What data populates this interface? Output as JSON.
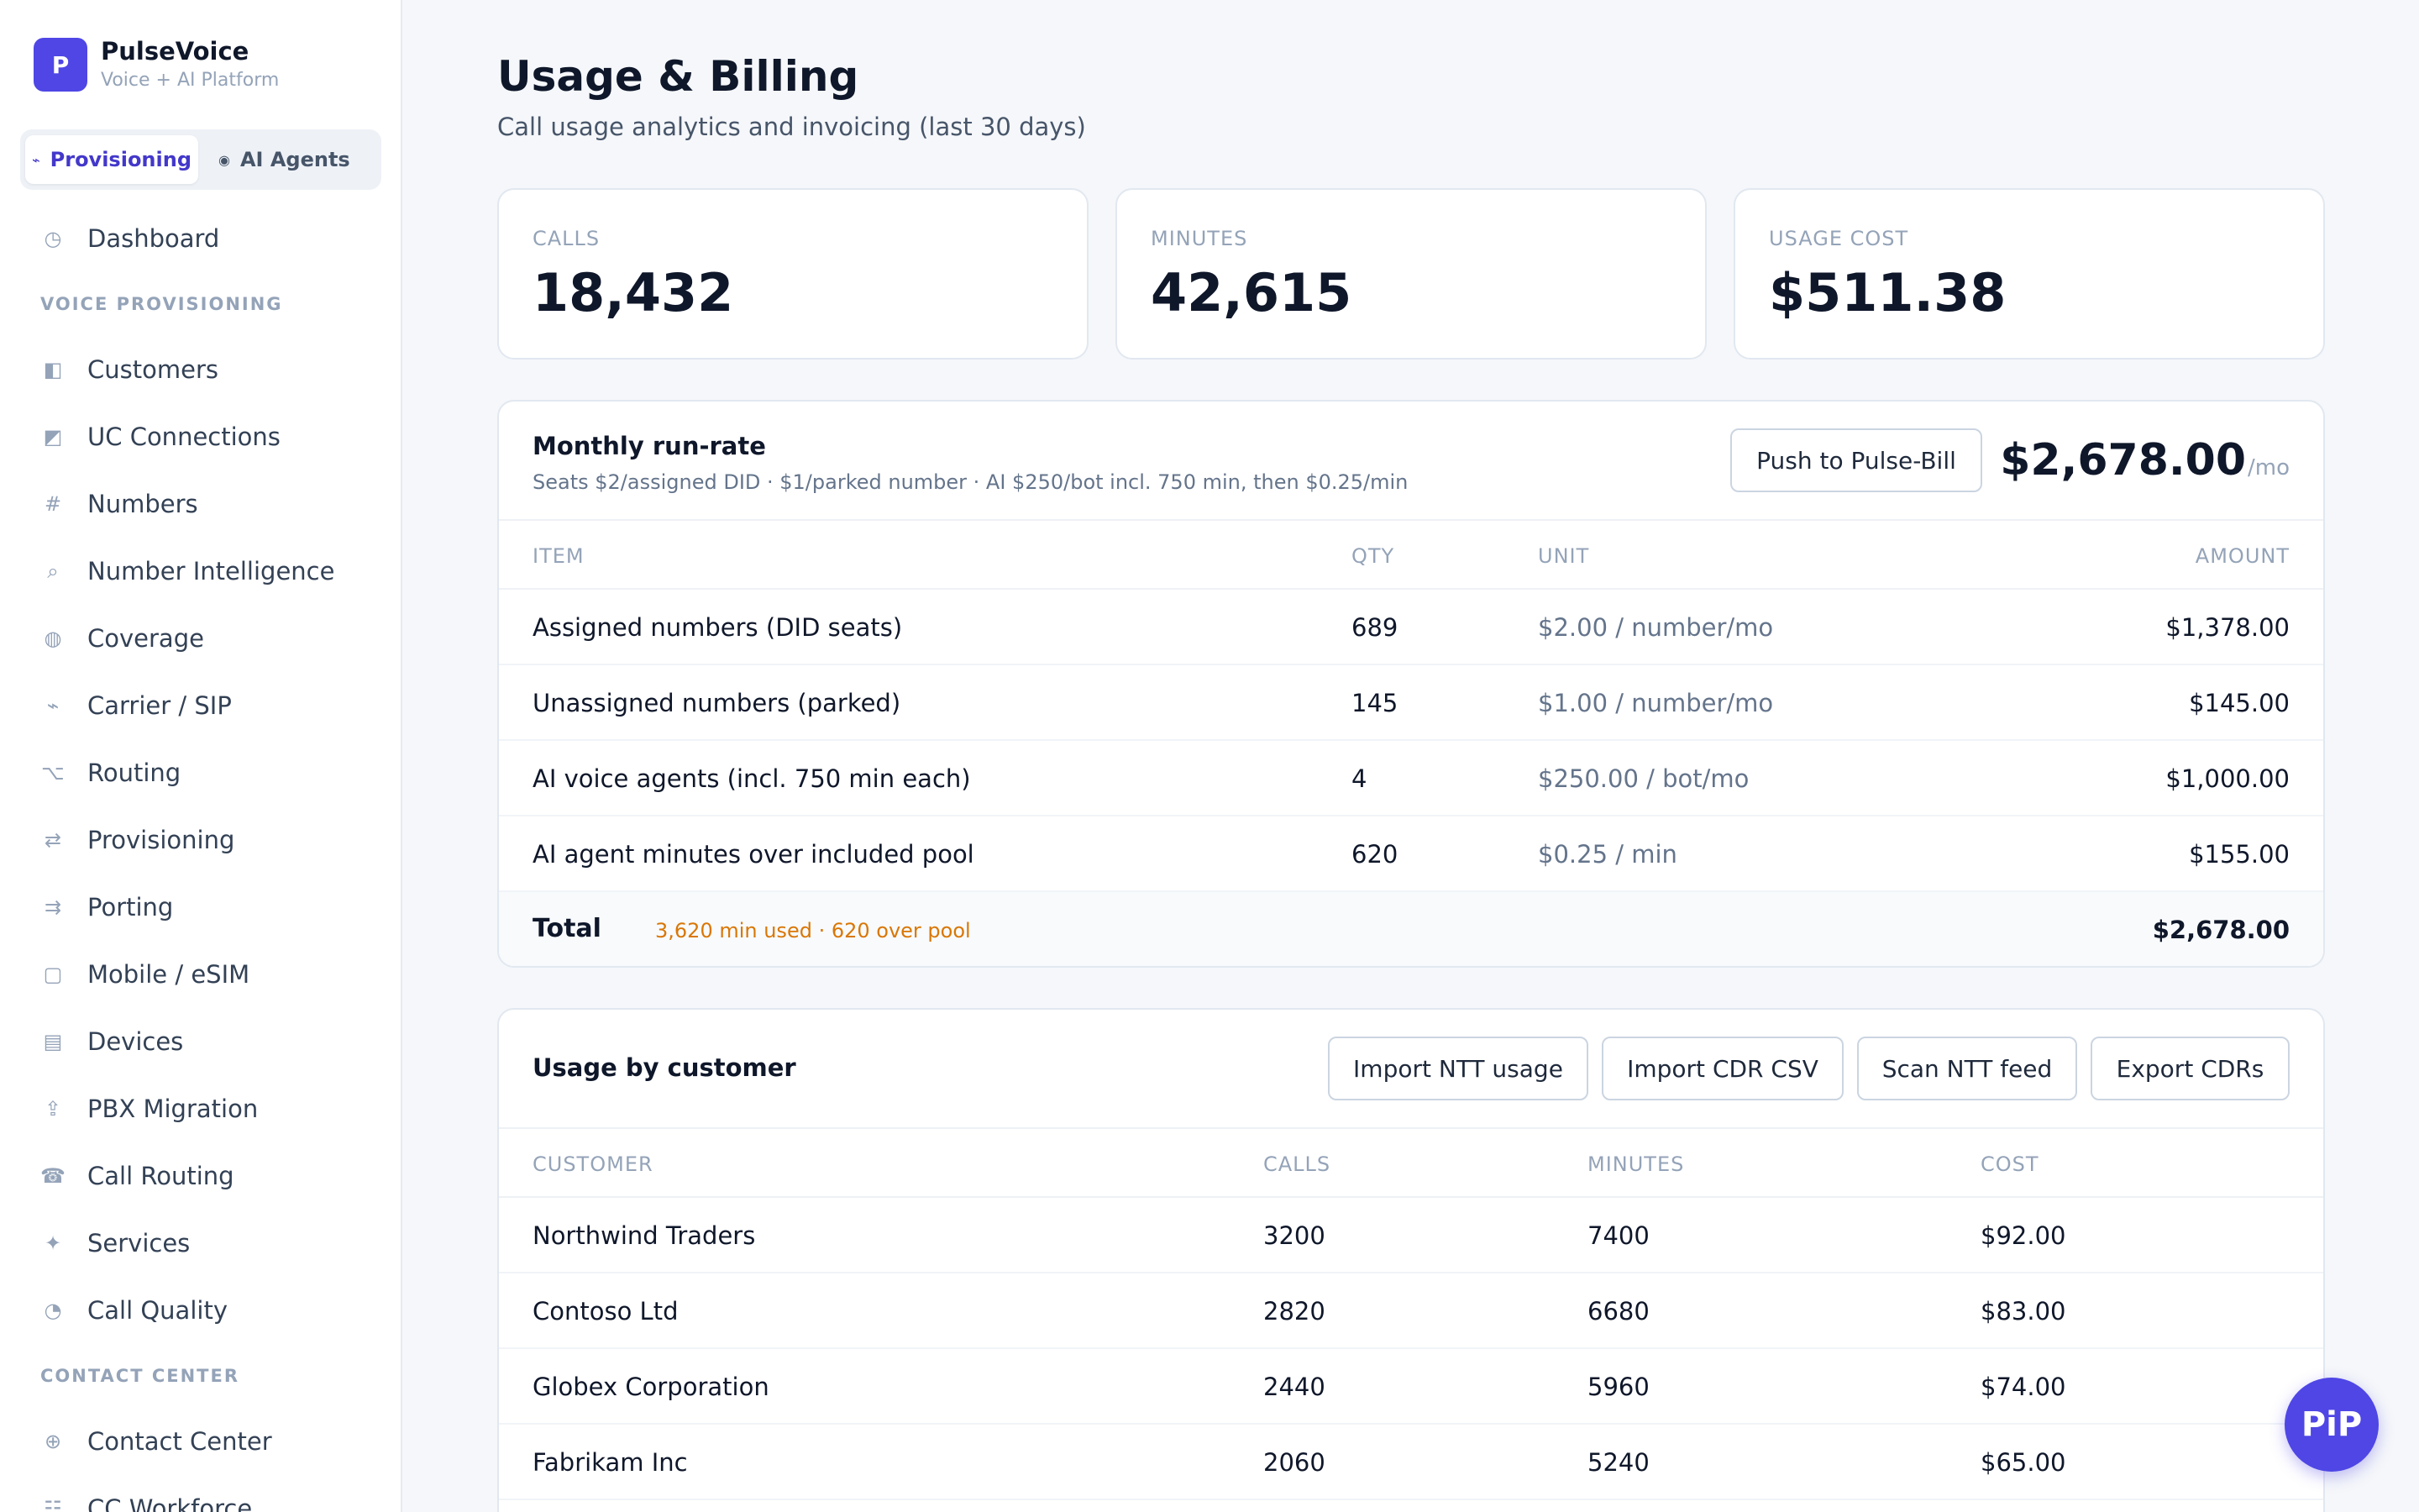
{
  "brand": {
    "logo_letter": "P",
    "name": "PulseVoice",
    "tagline": "Voice + AI Platform"
  },
  "mode_switch": {
    "provisioning": {
      "icon": "pulse-icon",
      "glyph": "⌁",
      "label": "Provisioning"
    },
    "ai_agents": {
      "icon": "dot-icon",
      "glyph": "◉",
      "label": "AI Agents"
    }
  },
  "nav": {
    "dashboard": {
      "icon": "clock-icon",
      "glyph": "◷",
      "label": "Dashboard"
    },
    "voice_section": "VOICE PROVISIONING",
    "voice_items": [
      {
        "icon": "customers-icon",
        "glyph": "◧",
        "label": "Customers"
      },
      {
        "icon": "uc-connections-icon",
        "glyph": "◩",
        "label": "UC Connections"
      },
      {
        "icon": "hash-icon",
        "glyph": "#",
        "label": "Numbers"
      },
      {
        "icon": "search-icon",
        "glyph": "⌕",
        "label": "Number Intelligence"
      },
      {
        "icon": "globe-icon",
        "glyph": "◍",
        "label": "Coverage"
      },
      {
        "icon": "carrier-icon",
        "glyph": "⌁",
        "label": "Carrier / SIP"
      },
      {
        "icon": "routing-icon",
        "glyph": "⌥",
        "label": "Routing"
      },
      {
        "icon": "swap-icon",
        "glyph": "⇄",
        "label": "Provisioning"
      },
      {
        "icon": "porting-icon",
        "glyph": "⇉",
        "label": "Porting"
      },
      {
        "icon": "mobile-icon",
        "glyph": "▢",
        "label": "Mobile / eSIM"
      },
      {
        "icon": "devices-icon",
        "glyph": "▤",
        "label": "Devices"
      },
      {
        "icon": "migration-icon",
        "glyph": "⇪",
        "label": "PBX Migration"
      },
      {
        "icon": "phone-icon",
        "glyph": "☎",
        "label": "Call Routing"
      },
      {
        "icon": "sparkle-icon",
        "glyph": "✦",
        "label": "Services"
      },
      {
        "icon": "quality-icon",
        "glyph": "◔",
        "label": "Call Quality"
      }
    ],
    "contact_section": "CONTACT CENTER",
    "contact_items": [
      {
        "icon": "contact-center-icon",
        "glyph": "⊕",
        "label": "Contact Center"
      },
      {
        "icon": "workforce-icon",
        "glyph": "☷",
        "label": "CC Workforce"
      }
    ]
  },
  "page": {
    "title": "Usage & Billing",
    "subtitle": "Call usage analytics and invoicing (last 30 days)"
  },
  "stats": [
    {
      "label": "CALLS",
      "value": "18,432"
    },
    {
      "label": "MINUTES",
      "value": "42,615"
    },
    {
      "label": "USAGE COST",
      "value": "$511.38"
    }
  ],
  "runrate": {
    "title": "Monthly run-rate",
    "description": "Seats $2/assigned DID · $1/parked number · AI $250/bot incl. 750 min, then $0.25/min",
    "push_button": "Push to Pulse-Bill",
    "amount": "$2,678.00",
    "per": "/mo",
    "columns": {
      "item": "ITEM",
      "qty": "QTY",
      "unit": "UNIT",
      "amount": "AMOUNT"
    },
    "rows": [
      {
        "item": "Assigned numbers (DID seats)",
        "qty": "689",
        "unit": "$2.00 / number/mo",
        "amount": "$1,378.00"
      },
      {
        "item": "Unassigned numbers (parked)",
        "qty": "145",
        "unit": "$1.00 / number/mo",
        "amount": "$145.00"
      },
      {
        "item": "AI voice agents (incl. 750 min each)",
        "qty": "4",
        "unit": "$250.00 / bot/mo",
        "amount": "$1,000.00"
      },
      {
        "item": "AI agent minutes over included pool",
        "qty": "620",
        "unit": "$0.25 / min",
        "amount": "$155.00"
      }
    ],
    "total_label": "Total",
    "total_note": "3,620 min used · 620 over pool",
    "total_amount": "$2,678.00"
  },
  "usage": {
    "title": "Usage by customer",
    "buttons": {
      "import_ntt": "Import NTT usage",
      "import_cdr": "Import CDR CSV",
      "scan_ntt": "Scan NTT feed",
      "export": "Export CDRs"
    },
    "columns": {
      "customer": "CUSTOMER",
      "calls": "CALLS",
      "minutes": "MINUTES",
      "cost": "COST"
    },
    "rows": [
      {
        "customer": "Northwind Traders",
        "calls": "3200",
        "minutes": "7400",
        "cost": "$92.00"
      },
      {
        "customer": "Contoso Ltd",
        "calls": "2820",
        "minutes": "6680",
        "cost": "$83.00"
      },
      {
        "customer": "Globex Corporation",
        "calls": "2440",
        "minutes": "5960",
        "cost": "$74.00"
      },
      {
        "customer": "Fabrikam Inc",
        "calls": "2060",
        "minutes": "5240",
        "cost": "$65.00"
      }
    ]
  },
  "pip": {
    "label": "PiP"
  },
  "colors": {
    "accent": "#4f46e5",
    "warning": "#d97706",
    "background": "#f5f7fa"
  }
}
